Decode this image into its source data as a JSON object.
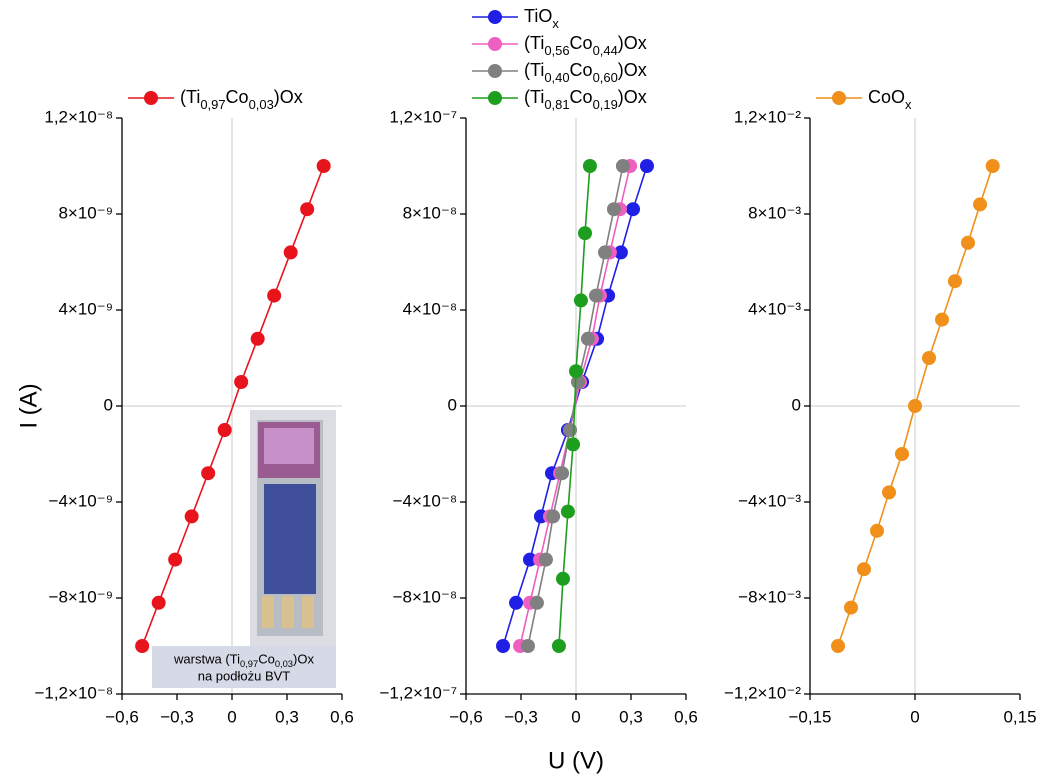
{
  "chart_data": [
    {
      "type": "line",
      "ylabel": "I (A)",
      "legend": "top",
      "xlim": [
        -0.6,
        0.6
      ],
      "xticks": [
        {
          "value": -0.6,
          "label": "−0,6"
        },
        {
          "value": -0.3,
          "label": "−0,3"
        },
        0,
        {
          "value": 0.3,
          "label": "0,3"
        },
        {
          "value": 0.6,
          "label": "0,6"
        }
      ],
      "ylim": [
        -1.2e-08,
        1.2e-08
      ],
      "yticks": [
        {
          "value": -1.2e-08,
          "label": "−1,2×10⁻⁸"
        },
        {
          "value": -8e-09,
          "label": "−8×10⁻⁹"
        },
        {
          "value": -4e-09,
          "label": "−4×10⁻⁹"
        },
        0,
        {
          "value": 4e-09,
          "label": "4×10⁻⁹"
        },
        {
          "value": 8e-09,
          "label": "8×10⁻⁹"
        },
        {
          "value": 1.2e-08,
          "label": "1,2×10⁻⁸"
        }
      ],
      "annotations": [
        "warstwa (Ti0,97Co0,03)Ox",
        "na podłożu BVT"
      ],
      "series": [
        {
          "name": "(Ti0,97Co0,03)Ox",
          "color": "#e8141c",
          "x": [
            -0.49,
            -0.4,
            -0.31,
            -0.22,
            -0.13,
            -0.04,
            0.05,
            0.14,
            0.23,
            0.32,
            0.41,
            0.5
          ],
          "values": [
            -1e-08,
            -8.2e-09,
            -6.4e-09,
            -4.6e-09,
            -2.8e-09,
            -1e-09,
            1e-09,
            2.8e-09,
            4.6e-09,
            6.4e-09,
            8.2e-09,
            1e-08
          ]
        }
      ]
    },
    {
      "type": "line",
      "xlabel": "U (V)",
      "legend": "top",
      "xlim": [
        -0.6,
        0.6
      ],
      "xticks": [
        {
          "value": -0.6,
          "label": "−0,6"
        },
        {
          "value": -0.3,
          "label": "−0,3"
        },
        0,
        {
          "value": 0.3,
          "label": "0,3"
        },
        {
          "value": 0.6,
          "label": "0,6"
        }
      ],
      "ylim": [
        -1.2e-07,
        1.2e-07
      ],
      "yticks": [
        {
          "value": -1.2e-07,
          "label": "−1,2×10⁻⁷"
        },
        {
          "value": -8e-08,
          "label": "−8×10⁻⁸"
        },
        {
          "value": -4e-08,
          "label": "−4×10⁻⁸"
        },
        0,
        {
          "value": 4e-08,
          "label": "4×10⁻⁸"
        },
        {
          "value": 8e-08,
          "label": "8×10⁻⁸"
        },
        {
          "value": 1.2e-07,
          "label": "1,2×10⁻⁷"
        }
      ],
      "series": [
        {
          "name": "TiOx",
          "color": "#1f1fe6",
          "x": [
            -0.398,
            -0.327,
            -0.251,
            -0.191,
            -0.131,
            -0.044,
            0.033,
            0.115,
            0.175,
            0.245,
            0.311,
            0.387
          ],
          "values": [
            -1e-07,
            -8.2e-08,
            -6.4e-08,
            -4.6e-08,
            -2.8e-08,
            -1e-08,
            1e-08,
            2.8e-08,
            4.6e-08,
            6.4e-08,
            8.2e-08,
            1e-07
          ]
        },
        {
          "name": "(Ti0,56Co0,44)Ox",
          "color": "#ee5fbf",
          "x": [
            -0.305,
            -0.251,
            -0.196,
            -0.142,
            -0.087,
            -0.033,
            0.022,
            0.087,
            0.131,
            0.185,
            0.24,
            0.295
          ],
          "values": [
            -1e-07,
            -8.2e-08,
            -6.4e-08,
            -4.6e-08,
            -2.8e-08,
            -1e-08,
            1e-08,
            2.8e-08,
            4.6e-08,
            6.4e-08,
            8.2e-08,
            1e-07
          ]
        },
        {
          "name": "(Ti0,40Co0,60)Ox",
          "color": "#808080",
          "x": [
            -0.262,
            -0.213,
            -0.164,
            -0.125,
            -0.076,
            -0.033,
            0.011,
            0.065,
            0.109,
            0.158,
            0.207,
            0.256
          ],
          "values": [
            -1e-07,
            -8.2e-08,
            -6.4e-08,
            -4.6e-08,
            -2.8e-08,
            -1e-08,
            1e-08,
            2.8e-08,
            4.6e-08,
            6.4e-08,
            8.2e-08,
            1e-07
          ]
        },
        {
          "name": "(Ti0,81Co0,19)Ox",
          "color": "#1e9e1e",
          "x": [
            -0.093,
            -0.071,
            -0.044,
            -0.016,
            0,
            0.027,
            0.049,
            0.076
          ],
          "values": [
            -1e-07,
            -7.2e-08,
            -4.4e-08,
            -1.6e-08,
            1.45e-08,
            4.4e-08,
            7.2e-08,
            1e-07
          ]
        }
      ]
    },
    {
      "type": "line",
      "legend": "top",
      "xlim": [
        -0.15,
        0.15
      ],
      "xticks": [
        {
          "value": -0.15,
          "label": "−0,15"
        },
        0,
        {
          "value": 0.15,
          "label": "0,15"
        }
      ],
      "ylim": [
        -0.012,
        0.012
      ],
      "yticks": [
        {
          "value": -0.012,
          "label": "−1,2×10⁻²"
        },
        {
          "value": -0.008,
          "label": "−8×10⁻³"
        },
        {
          "value": -0.004,
          "label": "−4×10⁻³"
        },
        0,
        {
          "value": 0.004,
          "label": "4×10⁻³"
        },
        {
          "value": 0.008,
          "label": "8×10⁻³"
        },
        {
          "value": 0.012,
          "label": "1,2×10⁻²"
        }
      ],
      "series": [
        {
          "name": "CoOx",
          "color": "#f0901a",
          "x": [
            -0.11,
            -0.0914,
            -0.0729,
            -0.0543,
            -0.0371,
            -0.0186,
            0,
            0.02,
            0.0386,
            0.0571,
            0.0757,
            0.0929,
            0.111
          ],
          "values": [
            -0.01,
            -0.0084,
            -0.0068,
            -0.0052,
            -0.0036,
            -0.002,
            0,
            0.002,
            0.0036,
            0.0052,
            0.0068,
            0.0084,
            0.01
          ]
        }
      ]
    }
  ]
}
